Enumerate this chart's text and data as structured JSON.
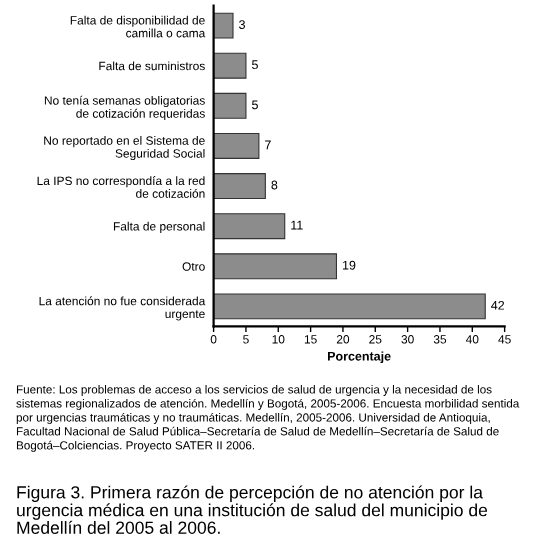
{
  "chart_data": {
    "type": "bar",
    "orientation": "horizontal",
    "categories": [
      "Falta de disponibilidad de\ncamilla o cama",
      "Falta de suministros",
      "No tenía semanas obligatorias\nde cotización requeridas",
      "No reportado en el Sistema de\nSeguridad Social",
      "La IPS no correspondía a la red\nde cotización",
      "Falta de personal",
      "Otro",
      "La atención no fue considerada\nurgente"
    ],
    "values": [
      3,
      5,
      5,
      7,
      8,
      11,
      19,
      42
    ],
    "color": "#8c8c8c",
    "data_labels": true,
    "xlabel": "Porcentaje",
    "xlim": [
      0,
      45
    ],
    "xticks": [
      0,
      5,
      10,
      15,
      20,
      25,
      30,
      35,
      40,
      45
    ],
    "grid": false,
    "legend": false,
    "annotations": [
      "Fuente: Los problemas de acceso a los servicios de salud de urgencia y la necesidad de los sistemas regionalizados de atención. Medellín y Bogotá, 2005-2006. Encuesta morbilidad sentida por urgencias traumáticas y no traumáticas. Medellín, 2005-2006. Universidad de Antioquia, Facultad Nacional de Salud Pública–Secretaría de Salud de Medellín–Secretaría de Salud de Bogotá–Colciencias. Proyecto SATER II 2006.",
      "Figura 3. Primera razón de percepción de no atención por la urgencia médica en una institución de salud del municipio de Medellín del 2005 al 2006."
    ]
  }
}
